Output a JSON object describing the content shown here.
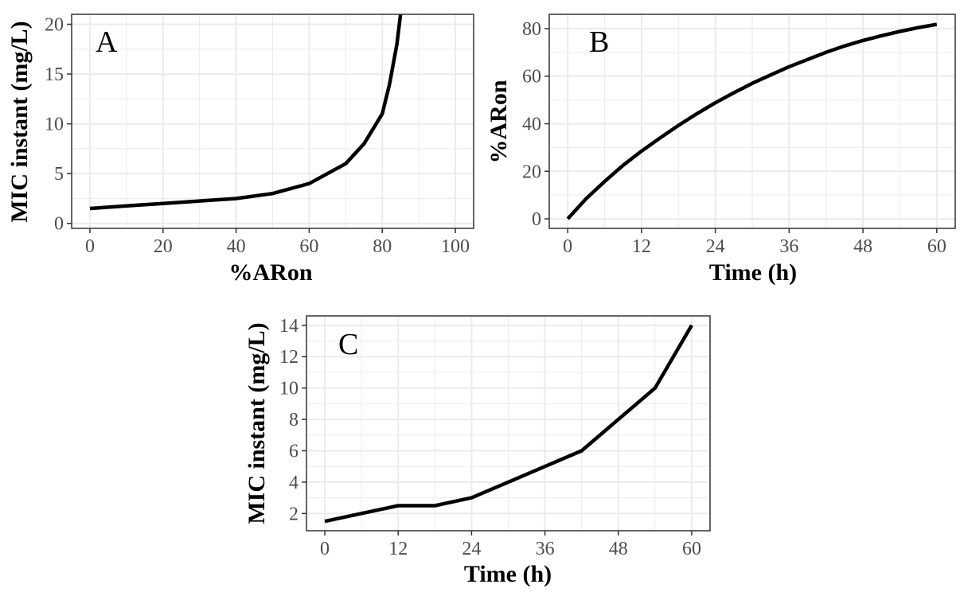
{
  "colors": {
    "line": "#000000",
    "grid": "#ebebeb",
    "border": "#333333",
    "tick_text": "#4d4d4d"
  },
  "chart_data": [
    {
      "panel": "A",
      "type": "line",
      "xlabel": "%ARon",
      "ylabel": "MIC instant (mg/L)",
      "xlim": [
        -5,
        105
      ],
      "ylim": [
        -0.5,
        21
      ],
      "xticks": [
        0,
        20,
        40,
        60,
        80,
        100
      ],
      "yticks": [
        0,
        5,
        10,
        15,
        20
      ],
      "grid": true,
      "x": [
        0,
        10,
        20,
        30,
        40,
        50,
        60,
        70,
        75,
        80,
        82,
        84,
        85
      ],
      "y": [
        1.5,
        1.75,
        2.0,
        2.25,
        2.5,
        3.0,
        4.0,
        6.0,
        8.0,
        11.0,
        14.0,
        18.0,
        21.0
      ]
    },
    {
      "panel": "B",
      "type": "line",
      "xlabel": "Time (h)",
      "ylabel": "%ARon",
      "xlim": [
        -3,
        63
      ],
      "ylim": [
        -4,
        86
      ],
      "xticks": [
        0,
        12,
        24,
        36,
        48,
        60
      ],
      "yticks": [
        0,
        20,
        40,
        60,
        80
      ],
      "grid": true,
      "x": [
        0,
        3,
        6,
        9,
        12,
        15,
        18,
        21,
        24,
        27,
        30,
        33,
        36,
        39,
        42,
        45,
        48,
        51,
        54,
        57,
        60
      ],
      "y": [
        0,
        8.5,
        15.7,
        22.5,
        28.5,
        34.0,
        39.3,
        44.2,
        48.8,
        53.0,
        57.0,
        60.5,
        64.0,
        67.0,
        70.0,
        72.7,
        75.0,
        77.0,
        78.8,
        80.4,
        81.8
      ]
    },
    {
      "panel": "C",
      "type": "line",
      "xlabel": "Time (h)",
      "ylabel": "MIC instant (mg/L)",
      "xlim": [
        -3,
        63
      ],
      "ylim": [
        0.9,
        14.6
      ],
      "xticks": [
        0,
        12,
        24,
        36,
        48,
        60
      ],
      "yticks": [
        2,
        4,
        6,
        8,
        10,
        12,
        14
      ],
      "grid": true,
      "x": [
        0,
        6,
        12,
        18,
        24,
        30,
        36,
        42,
        48,
        54,
        60
      ],
      "y": [
        1.5,
        2.0,
        2.5,
        2.5,
        3.0,
        4.0,
        5.0,
        6.0,
        8.0,
        10.0,
        14.0
      ]
    }
  ]
}
